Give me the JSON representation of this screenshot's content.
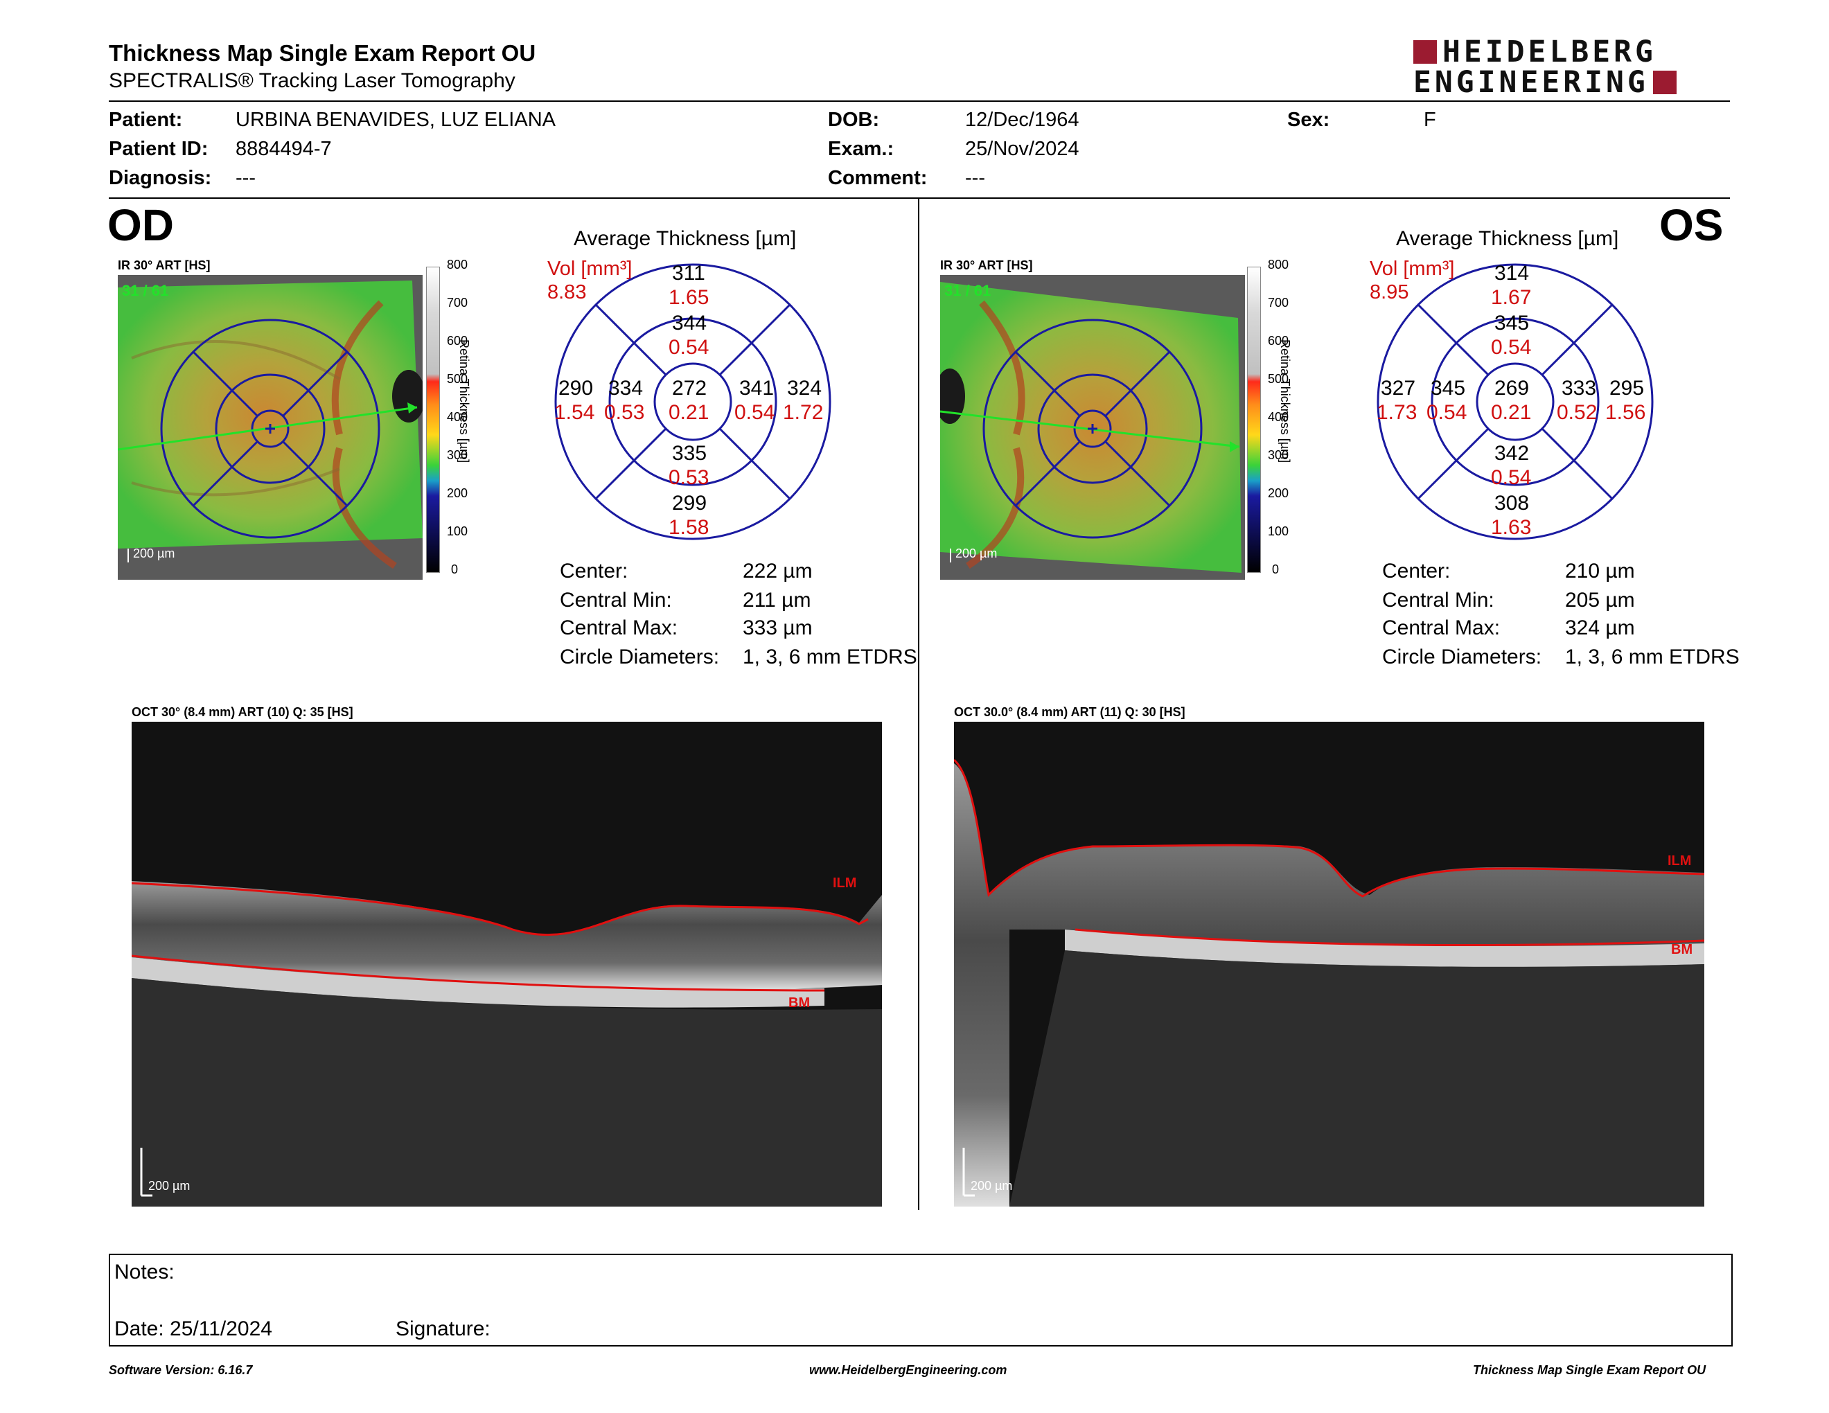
{
  "header": {
    "title": "Thickness Map Single Exam Report OU",
    "subtitle": "SPECTRALIS® Tracking Laser Tomography",
    "logo_line1": "HEIDELBERG",
    "logo_line2": "ENGINEERING"
  },
  "patient": {
    "patient_label": "Patient:",
    "patient_value": "URBINA BENAVIDES, LUZ ELIANA",
    "id_label": "Patient ID:",
    "id_value": "8884494-7",
    "diagnosis_label": "Diagnosis:",
    "diagnosis_value": "---",
    "dob_label": "DOB:",
    "dob_value": "12/Dec/1964",
    "exam_label": "Exam.:",
    "exam_value": "25/Nov/2024",
    "comment_label": "Comment:",
    "comment_value": "---",
    "sex_label": "Sex:",
    "sex_value": "F"
  },
  "scale_ticks": [
    "800",
    "700",
    "600",
    "500",
    "400",
    "300",
    "200",
    "100",
    "0"
  ],
  "scale_title": "Retina Thickness [µm]",
  "od": {
    "eye": "OD",
    "fundus_label": "IR 30° ART [HS]",
    "frames": "31 / 61",
    "scalebar": "200 µm",
    "chart_title": "Average Thickness [µm]",
    "vol_label": "Vol [mm³]",
    "vol_value": "8.83",
    "sectors": {
      "outer_sup": {
        "t": "311",
        "v": "1.65"
      },
      "inner_sup": {
        "t": "344",
        "v": "0.54"
      },
      "center": {
        "t": "272",
        "v": "0.21"
      },
      "outer_left": {
        "t": "290",
        "v": "1.54"
      },
      "inner_left": {
        "t": "334",
        "v": "0.53"
      },
      "inner_right": {
        "t": "341",
        "v": "0.54"
      },
      "outer_right": {
        "t": "324",
        "v": "1.72"
      },
      "inner_inf": {
        "t": "335",
        "v": "0.53"
      },
      "outer_inf": {
        "t": "299",
        "v": "1.58"
      }
    },
    "stats": [
      {
        "label": "Center:",
        "value": "222 µm"
      },
      {
        "label": "Central Min:",
        "value": "211 µm"
      },
      {
        "label": "Central Max:",
        "value": "333 µm"
      },
      {
        "label": "Circle Diameters:",
        "value": "1, 3, 6 mm ETDRS"
      }
    ],
    "oct_label": "OCT 30° (8.4 mm) ART (10) Q: 35 [HS]",
    "ilm": "ILM",
    "bm": "BM",
    "oct_scalebar": "200 µm"
  },
  "os": {
    "eye": "OS",
    "fundus_label": "IR 30° ART [HS]",
    "frames": "31 / 61",
    "scalebar": "200 µm",
    "chart_title": "Average Thickness [µm]",
    "vol_label": "Vol [mm³]",
    "vol_value": "8.95",
    "sectors": {
      "outer_sup": {
        "t": "314",
        "v": "1.67"
      },
      "inner_sup": {
        "t": "345",
        "v": "0.54"
      },
      "center": {
        "t": "269",
        "v": "0.21"
      },
      "outer_left": {
        "t": "327",
        "v": "1.73"
      },
      "inner_left": {
        "t": "345",
        "v": "0.54"
      },
      "inner_right": {
        "t": "333",
        "v": "0.52"
      },
      "outer_right": {
        "t": "295",
        "v": "1.56"
      },
      "inner_inf": {
        "t": "342",
        "v": "0.54"
      },
      "outer_inf": {
        "t": "308",
        "v": "1.63"
      }
    },
    "stats": [
      {
        "label": "Center:",
        "value": "210 µm"
      },
      {
        "label": "Central Min:",
        "value": "205 µm"
      },
      {
        "label": "Central Max:",
        "value": "324 µm"
      },
      {
        "label": "Circle Diameters:",
        "value": "1, 3, 6 mm ETDRS"
      }
    ],
    "oct_label": "OCT 30.0° (8.4 mm) ART (11) Q: 30 [HS]",
    "ilm": "ILM",
    "bm": "BM",
    "oct_scalebar": "200 µm"
  },
  "notes": {
    "notes_label": "Notes:",
    "date_label": "Date: 25/11/2024",
    "signature_label": "Signature:"
  },
  "footer": {
    "left": "Software Version: 6.16.7",
    "center": "www.HeidelbergEngineering.com",
    "right": "Thickness Map Single Exam Report OU"
  },
  "colors": {
    "vol_red": "#d01010",
    "chart_blue": "#1a1aa0",
    "logo_red": "#9b1b30",
    "ilm_red": "#d01010"
  }
}
